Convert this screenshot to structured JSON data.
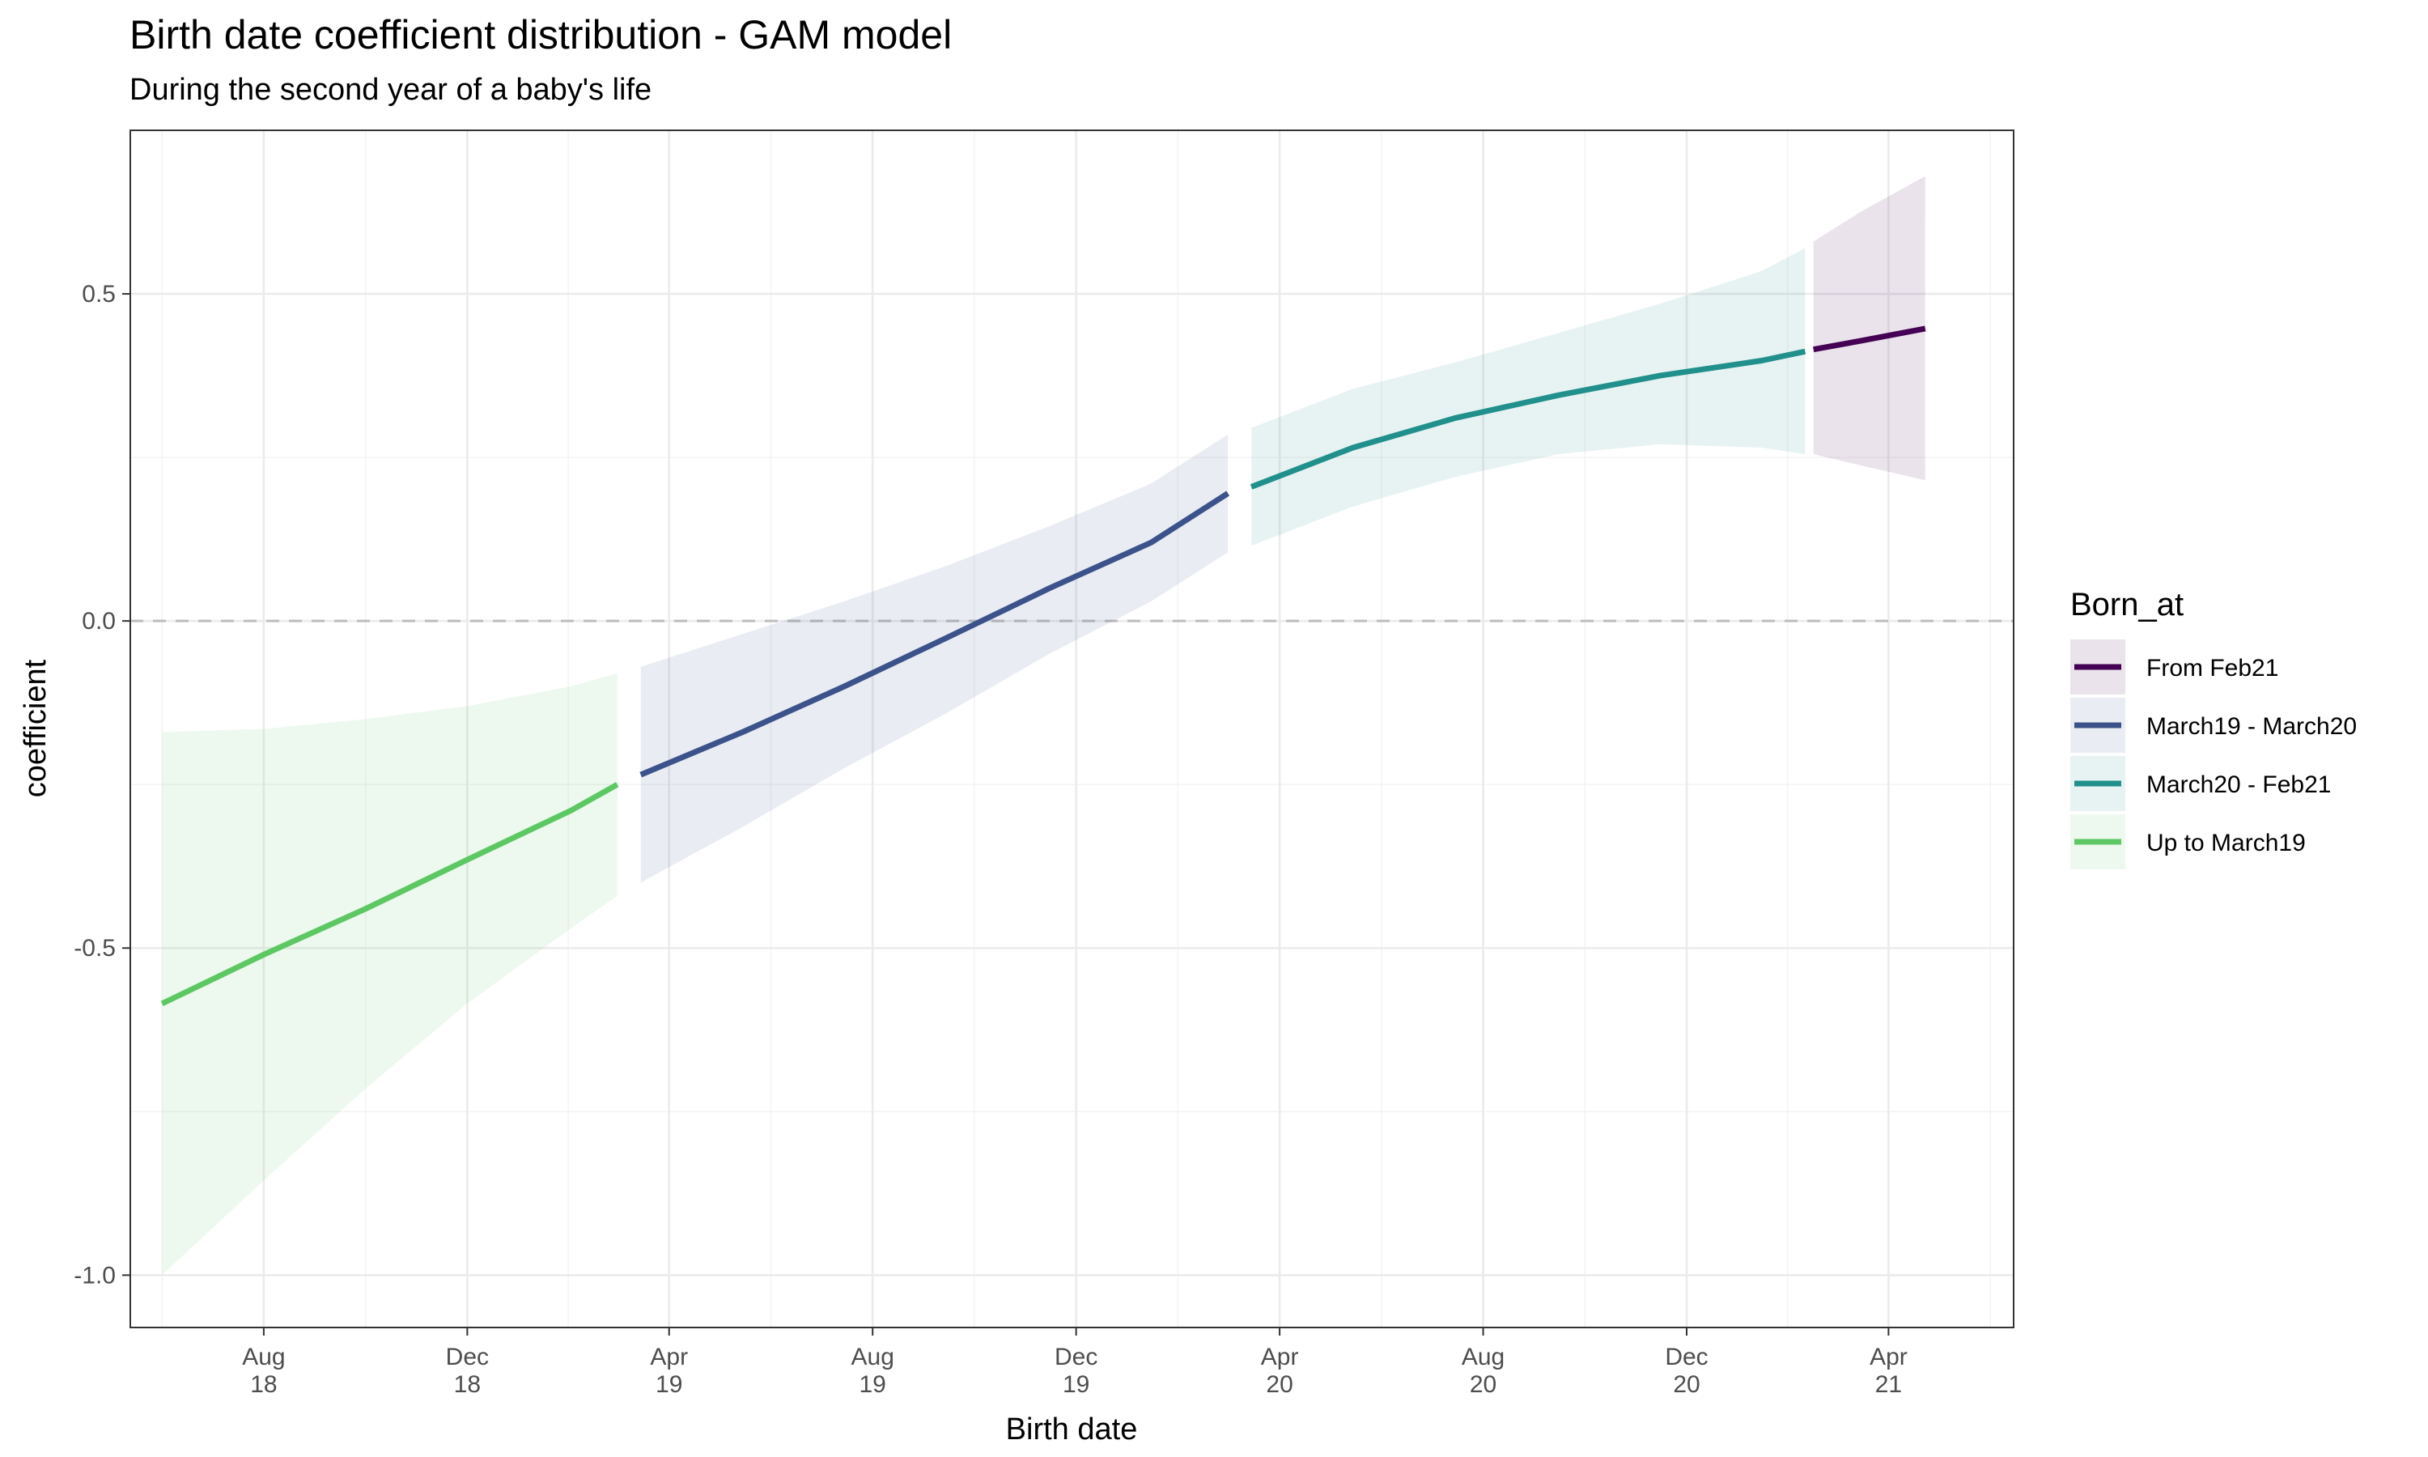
{
  "title": "Birth date coefficient distribution - GAM model",
  "subtitle": "During the second year of a baby's life",
  "chart_data": {
    "type": "line",
    "title": "Birth date coefficient distribution - GAM model",
    "subtitle": "During the second year of a baby's life",
    "xlabel": "Birth date",
    "ylabel": "coefficient",
    "xlim": [
      "2018-05-13",
      "2021-06-15"
    ],
    "ylim": [
      -1.08,
      0.75
    ],
    "x_ticks": [
      {
        "date": "2018-08-01",
        "line1": "Aug",
        "line2": "18"
      },
      {
        "date": "2018-12-01",
        "line1": "Dec",
        "line2": "18"
      },
      {
        "date": "2019-04-01",
        "line1": "Apr",
        "line2": "19"
      },
      {
        "date": "2019-08-01",
        "line1": "Aug",
        "line2": "19"
      },
      {
        "date": "2019-12-01",
        "line1": "Dec",
        "line2": "19"
      },
      {
        "date": "2020-04-01",
        "line1": "Apr",
        "line2": "20"
      },
      {
        "date": "2020-08-01",
        "line1": "Aug",
        "line2": "20"
      },
      {
        "date": "2020-12-01",
        "line1": "Dec",
        "line2": "20"
      },
      {
        "date": "2021-04-01",
        "line1": "Apr",
        "line2": "21"
      }
    ],
    "y_ticks": [
      {
        "value": -1.0,
        "label": "-1.0"
      },
      {
        "value": -0.5,
        "label": "-0.5"
      },
      {
        "value": 0.0,
        "label": "0.0"
      },
      {
        "value": 0.5,
        "label": "0.5"
      }
    ],
    "reference_line": {
      "y": 0,
      "style": "dashed"
    },
    "grid": true,
    "legend": {
      "title": "Born_at",
      "position": "right"
    },
    "series": [
      {
        "name": "From Feb21",
        "color": "#440154",
        "points": [
          {
            "x": "2021-02-15",
            "y": 0.415,
            "lo": 0.255,
            "hi": 0.58
          },
          {
            "x": "2021-03-15",
            "y": 0.428,
            "lo": 0.238,
            "hi": 0.625
          },
          {
            "x": "2021-04-23",
            "y": 0.447,
            "lo": 0.215,
            "hi": 0.68
          }
        ]
      },
      {
        "name": "March19 - March20",
        "color": "#3B528B",
        "points": [
          {
            "x": "2019-03-15",
            "y": -0.235,
            "lo": -0.4,
            "hi": -0.07
          },
          {
            "x": "2019-05-15",
            "y": -0.17,
            "lo": -0.315,
            "hi": -0.02
          },
          {
            "x": "2019-07-15",
            "y": -0.1,
            "lo": -0.225,
            "hi": 0.03
          },
          {
            "x": "2019-09-15",
            "y": -0.025,
            "lo": -0.14,
            "hi": 0.085
          },
          {
            "x": "2019-11-15",
            "y": 0.05,
            "lo": -0.05,
            "hi": 0.145
          },
          {
            "x": "2020-01-15",
            "y": 0.12,
            "lo": 0.03,
            "hi": 0.21
          },
          {
            "x": "2020-03-01",
            "y": 0.195,
            "lo": 0.105,
            "hi": 0.285
          }
        ]
      },
      {
        "name": "March20 - Feb21",
        "color": "#21908C",
        "points": [
          {
            "x": "2020-03-15",
            "y": 0.205,
            "lo": 0.115,
            "hi": 0.295
          },
          {
            "x": "2020-05-15",
            "y": 0.265,
            "lo": 0.175,
            "hi": 0.355
          },
          {
            "x": "2020-07-15",
            "y": 0.31,
            "lo": 0.22,
            "hi": 0.395
          },
          {
            "x": "2020-09-15",
            "y": 0.345,
            "lo": 0.255,
            "hi": 0.44
          },
          {
            "x": "2020-11-15",
            "y": 0.375,
            "lo": 0.27,
            "hi": 0.485
          },
          {
            "x": "2021-01-15",
            "y": 0.398,
            "lo": 0.265,
            "hi": 0.535
          },
          {
            "x": "2021-02-10",
            "y": 0.412,
            "lo": 0.255,
            "hi": 0.57
          }
        ]
      },
      {
        "name": "Up to March19",
        "color": "#5DC863",
        "points": [
          {
            "x": "2018-06-01",
            "y": -0.585,
            "lo": -1.0,
            "hi": -0.17
          },
          {
            "x": "2018-08-01",
            "y": -0.51,
            "lo": -0.855,
            "hi": -0.165
          },
          {
            "x": "2018-10-01",
            "y": -0.44,
            "lo": -0.715,
            "hi": -0.15
          },
          {
            "x": "2018-12-01",
            "y": -0.365,
            "lo": -0.585,
            "hi": -0.13
          },
          {
            "x": "2019-02-01",
            "y": -0.29,
            "lo": -0.47,
            "hi": -0.1
          },
          {
            "x": "2019-03-01",
            "y": -0.25,
            "lo": -0.42,
            "hi": -0.08
          }
        ]
      }
    ]
  }
}
